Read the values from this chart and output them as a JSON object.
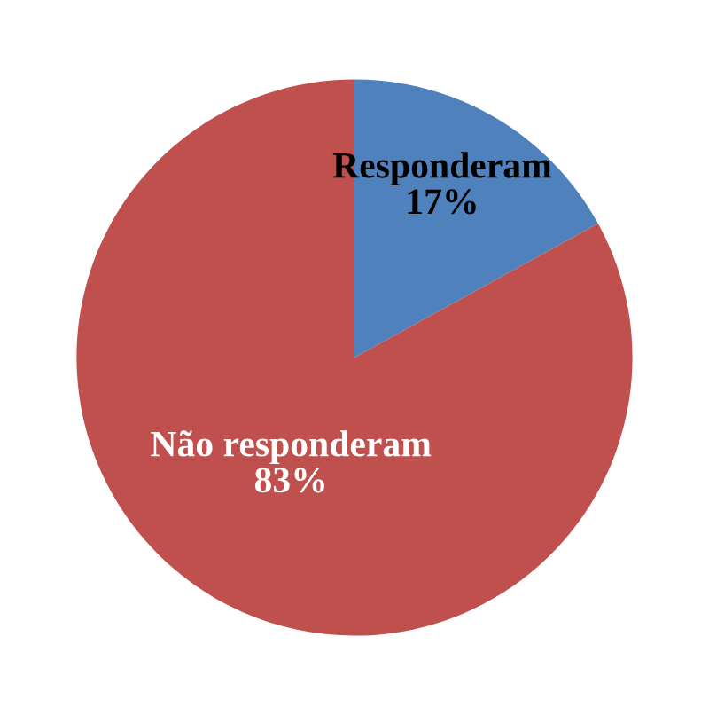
{
  "chart_data": {
    "type": "pie",
    "categories": [
      "Responderam",
      "Não responderam"
    ],
    "values": [
      17,
      83
    ],
    "value_labels": [
      "17%",
      "83%"
    ],
    "colors": [
      "#4f81bd",
      "#c0504d"
    ],
    "legend": false
  }
}
